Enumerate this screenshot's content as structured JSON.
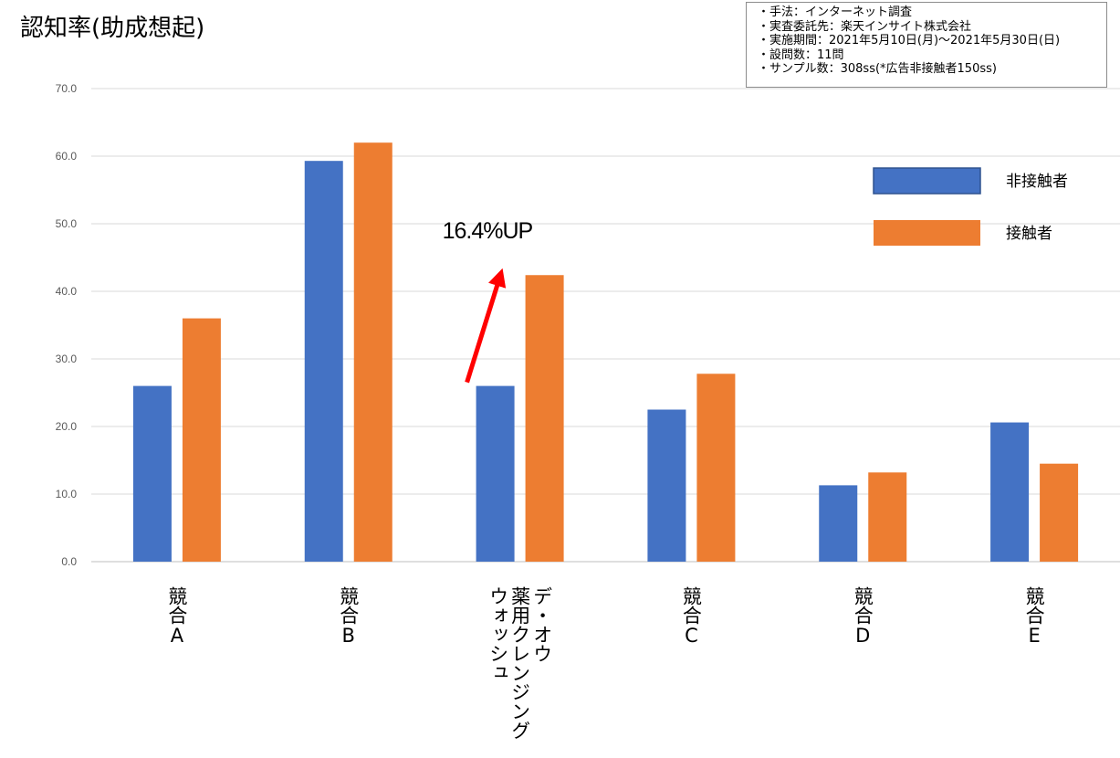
{
  "title": "認知率(助成想起)",
  "info_lines": [
    "・手法：インターネット調査",
    "・実査委託先：楽天インサイト株式会社",
    "・実施期間：2021年5月10日(月)～2021年5月30日(日)",
    "・設問数：11問",
    "・サンプル数：308ss(*広告非接触者150ss)"
  ],
  "annotation": "16.4%UP",
  "chart_data": {
    "type": "bar",
    "categories": [
      [
        "競合A"
      ],
      [
        "競合B"
      ],
      [
        "デ・オウ",
        "薬用クレンジング",
        "ウォッシュ"
      ],
      [
        "競合C"
      ],
      [
        "競合D"
      ],
      [
        "競合E"
      ]
    ],
    "series": [
      {
        "name": "非接触者",
        "color": "#4472C4",
        "values": [
          26.0,
          59.3,
          26.0,
          22.5,
          11.3,
          20.6
        ]
      },
      {
        "name": "接触者",
        "color": "#ED7D31",
        "values": [
          36.0,
          62.0,
          42.4,
          27.8,
          13.2,
          14.5
        ]
      }
    ],
    "ylim": [
      0,
      70
    ],
    "yticks": [
      "0.0",
      "10.0",
      "20.0",
      "30.0",
      "40.0",
      "50.0",
      "60.0",
      "70.0"
    ],
    "grid": true,
    "legend": "top-right",
    "arrow_color": "#FF0000"
  }
}
